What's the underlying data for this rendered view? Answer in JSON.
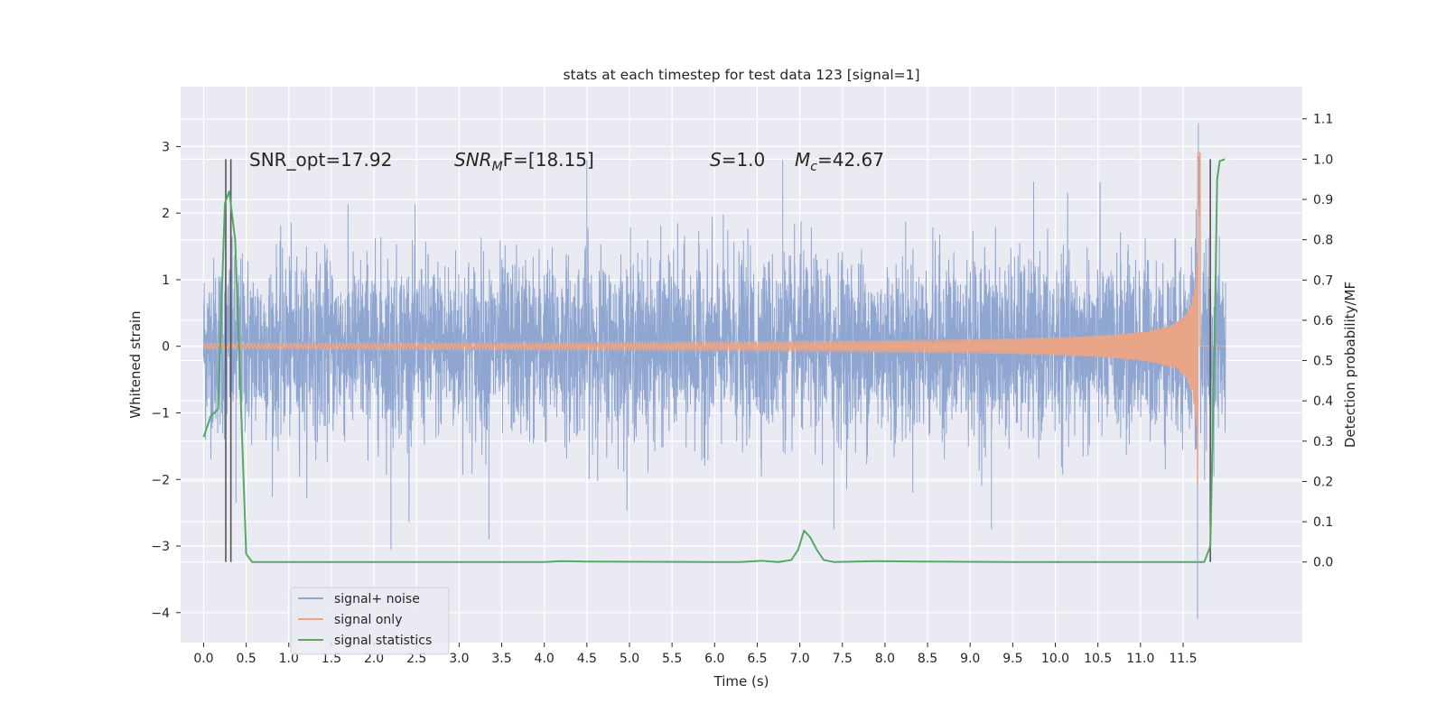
{
  "chart_data": {
    "type": "line",
    "title": "stats at each timestep for test data 123 [signal=1]",
    "xlabel": "Time (s)",
    "ylabel": "Whitened strain",
    "y2label": "Detection probability/MF",
    "xlim": [
      -0.27,
      12.9
    ],
    "ylim": [
      -4.45,
      3.9
    ],
    "y2lim": [
      -0.2,
      1.18
    ],
    "xticks": [
      "0.0",
      "0.5",
      "1.0",
      "1.5",
      "2.0",
      "2.5",
      "3.0",
      "3.5",
      "4.0",
      "4.5",
      "5.0",
      "5.5",
      "6.0",
      "6.5",
      "7.0",
      "7.5",
      "8.0",
      "8.5",
      "9.0",
      "9.5",
      "10.0",
      "10.5",
      "11.0",
      "11.5"
    ],
    "yticks": [
      "3",
      "2",
      "1",
      "0",
      "−1",
      "−2",
      "−3",
      "−4"
    ],
    "y2ticks": [
      "1.1",
      "1.0",
      "0.9",
      "0.8",
      "0.7",
      "0.6",
      "0.5",
      "0.4",
      "0.3",
      "0.2",
      "0.1",
      "0.0"
    ],
    "grid": true,
    "legend_position": "lower-left",
    "annotations": {
      "snr_opt": "SNR_opt=17.92",
      "snr_mf_name": "SNR",
      "snr_mf_sub": "M",
      "snr_mf_rest": "F=[18.15]",
      "s_name": "S",
      "s_value": "=1.0",
      "mc_name": "M",
      "mc_sub": "c",
      "mc_value": "=42.67"
    },
    "series": [
      {
        "name": "signal+ noise",
        "color": "#8fa6d1",
        "axis": "left",
        "description": "noisy whitened strain, roughly spanning -1.5 to 1.5 with spikes up to ~2.8 and down to ~-3.0, min ~-4.1 near t=11.67",
        "typical_amplitude": 1.2,
        "peak_values": [
          [
            0.38,
            -2.35
          ],
          [
            2.2,
            -3.05
          ],
          [
            3.35,
            -2.9
          ],
          [
            4.5,
            2.8
          ],
          [
            6.8,
            2.8
          ],
          [
            7.4,
            -2.75
          ],
          [
            9.25,
            -2.75
          ],
          [
            11.67,
            -4.1
          ],
          [
            11.68,
            3.35
          ]
        ]
      },
      {
        "name": "signal only",
        "color": "#e8a587",
        "axis": "left",
        "description": "chirp signal, flat near 0 until ~7.5 s, growing oscillation, peak ~3.55 / -3.55 at ~11.68 s",
        "t_merger": 11.68,
        "peak_amplitude": 3.55
      },
      {
        "name": "signal statistics",
        "color": "#55a868",
        "axis": "right",
        "points": [
          [
            0.0,
            0.31
          ],
          [
            0.08,
            0.36
          ],
          [
            0.17,
            0.38
          ],
          [
            0.25,
            0.89
          ],
          [
            0.3,
            0.92
          ],
          [
            0.37,
            0.8
          ],
          [
            0.5,
            0.02
          ],
          [
            0.57,
            0.0
          ],
          [
            1.5,
            0.0
          ],
          [
            3.0,
            0.0
          ],
          [
            4.0,
            0.0
          ],
          [
            4.2,
            0.002
          ],
          [
            4.5,
            0.001
          ],
          [
            6.0,
            0.0
          ],
          [
            6.3,
            0.0
          ],
          [
            6.55,
            0.003
          ],
          [
            6.75,
            0.0
          ],
          [
            6.9,
            0.005
          ],
          [
            6.98,
            0.03
          ],
          [
            7.05,
            0.078
          ],
          [
            7.12,
            0.062
          ],
          [
            7.2,
            0.03
          ],
          [
            7.28,
            0.005
          ],
          [
            7.4,
            0.0
          ],
          [
            7.9,
            0.002
          ],
          [
            8.5,
            0.001
          ],
          [
            9.5,
            0.0
          ],
          [
            11.0,
            0.0
          ],
          [
            11.75,
            0.0
          ],
          [
            11.82,
            0.04
          ],
          [
            11.87,
            0.55
          ],
          [
            11.9,
            0.95
          ],
          [
            11.93,
            0.995
          ],
          [
            11.99,
            1.0
          ]
        ]
      }
    ],
    "vertical_lines": [
      0.26,
      0.32,
      11.82
    ]
  }
}
